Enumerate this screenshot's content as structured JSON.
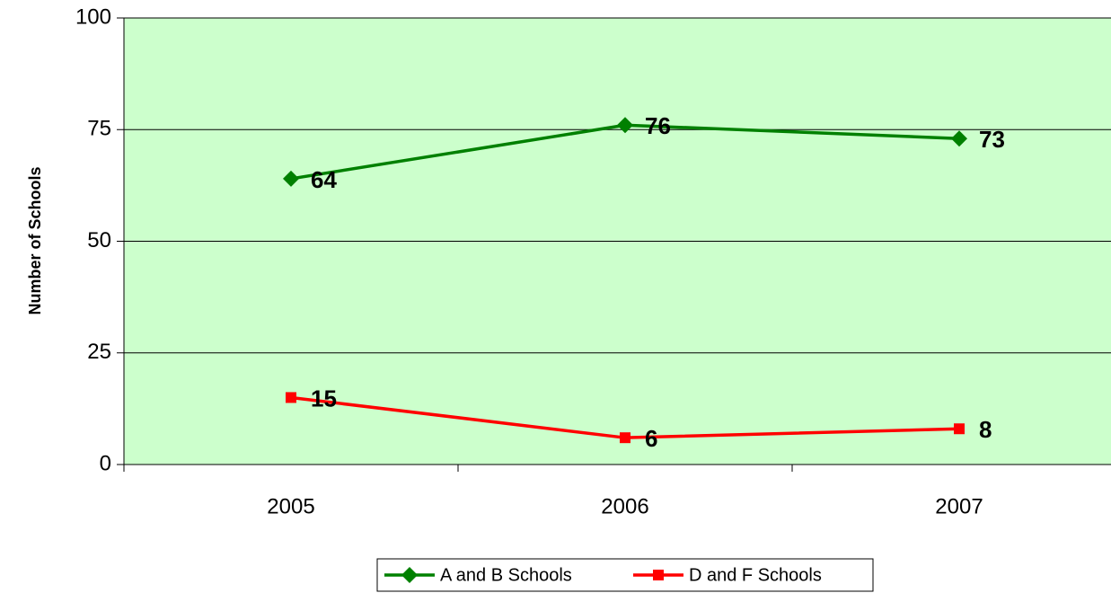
{
  "chart_data": {
    "type": "line",
    "y_label": "Number of Schools",
    "categories": [
      "2005",
      "2006",
      "2007"
    ],
    "series": [
      {
        "name": "A and B Schools",
        "color": "#008000",
        "marker": "diamond",
        "values": [
          64,
          76,
          73
        ]
      },
      {
        "name": "D and F Schools",
        "color": "#ff0000",
        "marker": "square",
        "values": [
          15,
          6,
          8
        ]
      }
    ],
    "ylim": [
      0,
      100
    ],
    "yticks": [
      0,
      25,
      50,
      75,
      100
    ],
    "grid": true,
    "plot_background": "#ccffcc",
    "legend": "bottom"
  }
}
